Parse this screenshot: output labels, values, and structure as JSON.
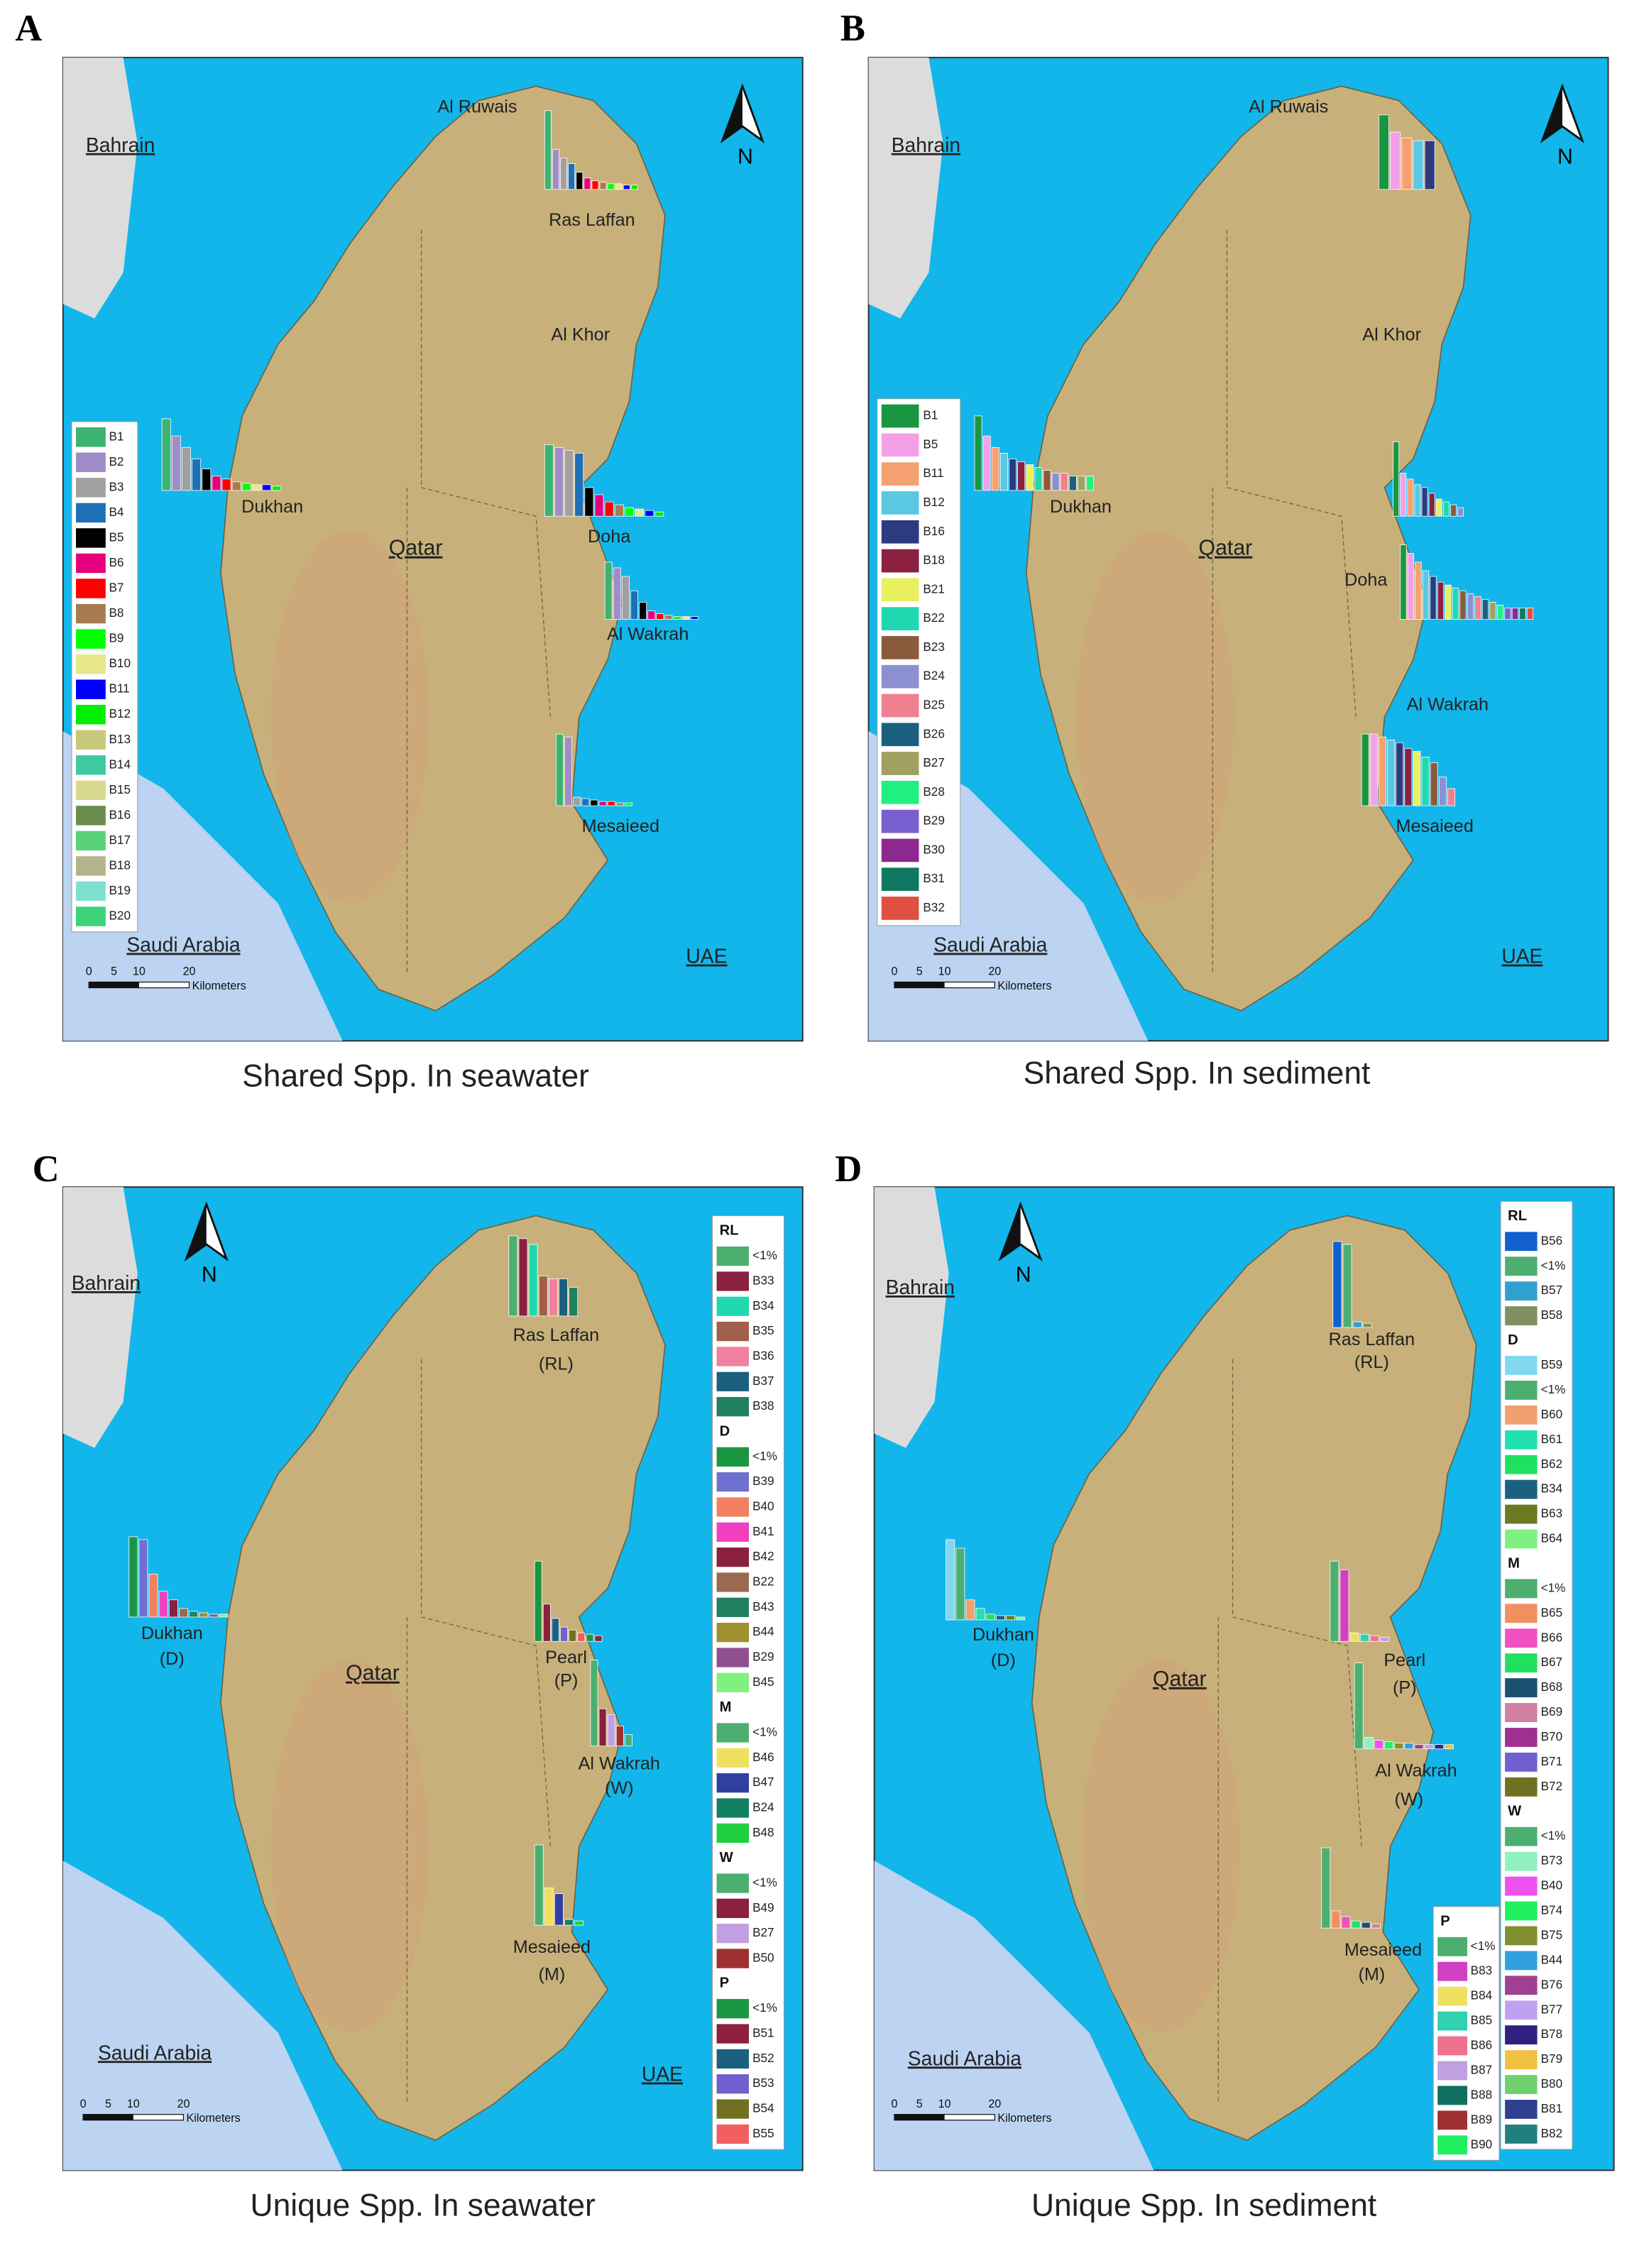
{
  "panels": [
    {
      "letter": "A",
      "caption": "Shared Spp. In seawater",
      "center_label": "Qatar",
      "north": "N",
      "countries": [
        "Bahrain",
        "Saudi Arabia",
        "UAE"
      ],
      "places": [
        "Al Ruwais",
        "Ras Laffan",
        "Al Khor",
        "Dukhan",
        "Doha",
        "Al Wakrah",
        "Mesaieed"
      ],
      "scale": {
        "ticks": [
          0,
          5,
          10,
          20
        ],
        "unit": "Kilometers"
      },
      "legend": {
        "items": [
          {
            "label": "B1",
            "color": "#3cb371"
          },
          {
            "label": "B2",
            "color": "#a08cc8"
          },
          {
            "label": "B3",
            "color": "#a0a0a0"
          },
          {
            "label": "B4",
            "color": "#1f6fb4"
          },
          {
            "label": "B5",
            "color": "#000000"
          },
          {
            "label": "B6",
            "color": "#e6007e"
          },
          {
            "label": "B7",
            "color": "#ff0000"
          },
          {
            "label": "B8",
            "color": "#a87b4f"
          },
          {
            "label": "B9",
            "color": "#00ff00"
          },
          {
            "label": "B10",
            "color": "#e6e68a"
          },
          {
            "label": "B11",
            "color": "#0000ff"
          },
          {
            "label": "B12",
            "color": "#00ee00"
          },
          {
            "label": "B13",
            "color": "#c8c878"
          },
          {
            "label": "B14",
            "color": "#40c8a0"
          },
          {
            "label": "B15",
            "color": "#d8d890"
          },
          {
            "label": "B16",
            "color": "#6b8e4e"
          },
          {
            "label": "B17",
            "color": "#5ad27a"
          },
          {
            "label": "B18",
            "color": "#b4b48c"
          },
          {
            "label": "B19",
            "color": "#80e0d0"
          },
          {
            "label": "B20",
            "color": "#3cd27a"
          }
        ]
      },
      "sites": [
        {
          "values": [
            55,
            28,
            22,
            18,
            12,
            8,
            6,
            5,
            4,
            4,
            3,
            3
          ]
        },
        {
          "values": [
            50,
            38,
            30,
            22,
            15,
            10,
            8,
            6,
            5,
            4,
            4,
            3
          ]
        },
        {
          "values": [
            50,
            48,
            46,
            44,
            20,
            15,
            10,
            8,
            6,
            5,
            4,
            3
          ]
        },
        {
          "values": [
            40,
            36,
            30,
            20,
            12,
            6,
            4,
            3,
            2,
            2,
            2
          ]
        },
        {
          "values": [
            50,
            48,
            6,
            5,
            4,
            3,
            3,
            2,
            2
          ]
        }
      ]
    },
    {
      "letter": "B",
      "caption": "Shared Spp. In sediment",
      "center_label": "Qatar",
      "north": "N",
      "countries": [
        "Bahrain",
        "Saudi Arabia",
        "UAE"
      ],
      "places": [
        "Al Ruwais",
        "Al Khor",
        "Dukhan",
        "Doha",
        "Al Wakrah",
        "Mesaieed"
      ],
      "scale": {
        "ticks": [
          0,
          5,
          10,
          20
        ],
        "unit": "Kilometers"
      },
      "legend": {
        "items": [
          {
            "label": "B1",
            "color": "#1a9641"
          },
          {
            "label": "B5",
            "color": "#f4a0e8"
          },
          {
            "label": "B11",
            "color": "#f4a070"
          },
          {
            "label": "B12",
            "color": "#5ac8e0"
          },
          {
            "label": "B16",
            "color": "#2e3a80"
          },
          {
            "label": "B18",
            "color": "#8b2040"
          },
          {
            "label": "B21",
            "color": "#e8f060"
          },
          {
            "label": "B22",
            "color": "#20d8b0"
          },
          {
            "label": "B23",
            "color": "#8b5a3c"
          },
          {
            "label": "B24",
            "color": "#8c90d0"
          },
          {
            "label": "B25",
            "color": "#f08090"
          },
          {
            "label": "B26",
            "color": "#1c6080"
          },
          {
            "label": "B27",
            "color": "#a0a060"
          },
          {
            "label": "B28",
            "color": "#20f080"
          },
          {
            "label": "B29",
            "color": "#7860d0"
          },
          {
            "label": "B30",
            "color": "#8c2890"
          },
          {
            "label": "B31",
            "color": "#107860"
          },
          {
            "label": "B32",
            "color": "#e05040"
          }
        ]
      },
      "sites": [
        {
          "values": [
            52,
            40,
            36,
            34,
            34
          ]
        },
        {
          "values": [
            52,
            38,
            30,
            26,
            22,
            20,
            18,
            16,
            14,
            12,
            12,
            10,
            10,
            10
          ]
        },
        {
          "values": [
            52,
            30,
            26,
            22,
            20,
            16,
            12,
            10,
            8,
            6
          ]
        },
        {
          "values": [
            52,
            46,
            40,
            34,
            30,
            26,
            24,
            22,
            20,
            18,
            16,
            14,
            12,
            10,
            8,
            8,
            8,
            8
          ]
        },
        {
          "values": [
            50,
            50,
            48,
            46,
            44,
            40,
            38,
            34,
            30,
            20,
            12
          ]
        }
      ]
    },
    {
      "letter": "C",
      "caption": "Unique Spp. In seawater",
      "center_label": "Qatar",
      "north": "N",
      "countries": [
        "Bahrain",
        "Saudi Arabia",
        "UAE"
      ],
      "places": [
        "Ras Laffan",
        "(RL)",
        "Dukhan",
        "(D)",
        "Pearl",
        "(P)",
        "Al Wakrah",
        "(W)",
        "Mesaieed",
        "(M)"
      ],
      "scale": {
        "ticks": [
          0,
          5,
          10,
          20
        ],
        "unit": "Kilometers"
      },
      "legend": {
        "groups": [
          {
            "title": "RL",
            "items": [
              {
                "label": "<1%",
                "color": "#4caf70"
              },
              {
                "label": "B33",
                "color": "#8b2040"
              },
              {
                "label": "B34",
                "color": "#20d8b0"
              },
              {
                "label": "B35",
                "color": "#a0604c"
              },
              {
                "label": "B36",
                "color": "#f080a0"
              },
              {
                "label": "B37",
                "color": "#1c6080"
              },
              {
                "label": "B38",
                "color": "#208060"
              }
            ]
          },
          {
            "title": "D",
            "items": [
              {
                "label": "<1%",
                "color": "#1a9641"
              },
              {
                "label": "B39",
                "color": "#7070d0"
              },
              {
                "label": "B40",
                "color": "#f08060"
              },
              {
                "label": "B41",
                "color": "#f040c0"
              },
              {
                "label": "B42",
                "color": "#8b2040"
              },
              {
                "label": "B22",
                "color": "#9a6a50"
              },
              {
                "label": "B43",
                "color": "#208060"
              },
              {
                "label": "B44",
                "color": "#a09030"
              },
              {
                "label": "B29",
                "color": "#905090"
              },
              {
                "label": "B45",
                "color": "#80f080"
              }
            ]
          },
          {
            "title": "M",
            "items": [
              {
                "label": "<1%",
                "color": "#4caf70"
              },
              {
                "label": "B46",
                "color": "#f0e060"
              },
              {
                "label": "B47",
                "color": "#3040a0"
              },
              {
                "label": "B24",
                "color": "#108060"
              },
              {
                "label": "B48",
                "color": "#20d040"
              }
            ]
          },
          {
            "title": "W",
            "items": [
              {
                "label": "<1%",
                "color": "#4caf70"
              },
              {
                "label": "B49",
                "color": "#8b2040"
              },
              {
                "label": "B27",
                "color": "#c0a0e0"
              },
              {
                "label": "B50",
                "color": "#a03030"
              }
            ]
          },
          {
            "title": "P",
            "items": [
              {
                "label": "<1%",
                "color": "#1a9641"
              },
              {
                "label": "B51",
                "color": "#8b2040"
              },
              {
                "label": "B52",
                "color": "#1c6080"
              },
              {
                "label": "B53",
                "color": "#7060d0"
              },
              {
                "label": "B54",
                "color": "#707020"
              },
              {
                "label": "B55",
                "color": "#f06060"
              }
            ]
          }
        ]
      },
      "sites": [
        {
          "values": [
            56,
            54,
            50,
            28,
            26,
            26,
            20
          ]
        },
        {
          "values": [
            56,
            54,
            30,
            18,
            12,
            6,
            4,
            3,
            2,
            2
          ]
        },
        {
          "values": [
            56,
            26,
            22,
            4,
            3
          ]
        },
        {
          "values": [
            60,
            26,
            22,
            14,
            8
          ]
        },
        {
          "values": [
            56,
            26,
            16,
            10,
            8,
            6,
            5,
            4
          ]
        }
      ]
    },
    {
      "letter": "D",
      "caption": "Unique Spp. In sediment",
      "center_label": "Qatar",
      "north": "N",
      "countries": [
        "Bahrain",
        "Saudi Arabia"
      ],
      "places": [
        "Ras Laffan",
        "(RL)",
        "Dukhan",
        "(D)",
        "Pearl",
        "(P)",
        "Al Wakrah",
        "(W)",
        "Mesaieed",
        "(M)"
      ],
      "scale": {
        "ticks": [
          0,
          5,
          10,
          20
        ],
        "unit": "Kilometers"
      },
      "legend": {
        "groups": [
          {
            "title": "RL",
            "items": [
              {
                "label": "B56",
                "color": "#1060d0"
              },
              {
                "label": "<1%",
                "color": "#4caf70"
              },
              {
                "label": "B57",
                "color": "#30a0d0"
              },
              {
                "label": "B58",
                "color": "#809060"
              }
            ]
          },
          {
            "title": "D",
            "items": [
              {
                "label": "B59",
                "color": "#80d8f0"
              },
              {
                "label": "<1%",
                "color": "#4caf70"
              },
              {
                "label": "B60",
                "color": "#f0a070"
              },
              {
                "label": "B61",
                "color": "#20e0b0"
              },
              {
                "label": "B62",
                "color": "#20e060"
              },
              {
                "label": "B34",
                "color": "#1c6080"
              },
              {
                "label": "B63",
                "color": "#6b7a20"
              },
              {
                "label": "B64",
                "color": "#80f080"
              }
            ]
          },
          {
            "title": "M",
            "items": [
              {
                "label": "<1%",
                "color": "#4caf70"
              },
              {
                "label": "B65",
                "color": "#f09060"
              },
              {
                "label": "B66",
                "color": "#f050c0"
              },
              {
                "label": "B67",
                "color": "#20e060"
              },
              {
                "label": "B68",
                "color": "#1c5070"
              },
              {
                "label": "B69",
                "color": "#d080a0"
              },
              {
                "label": "B70",
                "color": "#a03090"
              },
              {
                "label": "B71",
                "color": "#7060d0"
              },
              {
                "label": "B72",
                "color": "#707020"
              }
            ]
          },
          {
            "title": "W",
            "items": [
              {
                "label": "<1%",
                "color": "#4caf70"
              },
              {
                "label": "B73",
                "color": "#90f0c0"
              },
              {
                "label": "B40",
                "color": "#f050f0"
              },
              {
                "label": "B74",
                "color": "#20f060"
              },
              {
                "label": "B75",
                "color": "#809030"
              },
              {
                "label": "B44",
                "color": "#30a0e0"
              },
              {
                "label": "B76",
                "color": "#a04090"
              },
              {
                "label": "B77",
                "color": "#c0a0f0"
              },
              {
                "label": "B78",
                "color": "#302080"
              },
              {
                "label": "B79",
                "color": "#f0c040"
              },
              {
                "label": "B80",
                "color": "#70d070"
              },
              {
                "label": "B81",
                "color": "#304090"
              },
              {
                "label": "B82",
                "color": "#208080"
              }
            ]
          },
          {
            "title": "P",
            "items": [
              {
                "label": "<1%",
                "color": "#4caf70"
              },
              {
                "label": "B83",
                "color": "#d040c0"
              },
              {
                "label": "B84",
                "color": "#f0e060"
              },
              {
                "label": "B85",
                "color": "#30d0b0"
              },
              {
                "label": "B86",
                "color": "#f07090"
              },
              {
                "label": "B87",
                "color": "#c0a0e0"
              },
              {
                "label": "B88",
                "color": "#107060"
              },
              {
                "label": "B89",
                "color": "#a03030"
              },
              {
                "label": "B90",
                "color": "#20f060"
              }
            ]
          }
        ]
      },
      "sites": [
        {
          "values": [
            60,
            58,
            4,
            3
          ]
        },
        {
          "values": [
            56,
            50,
            14,
            8,
            4,
            3,
            3,
            2
          ]
        },
        {
          "values": [
            56,
            12,
            8,
            5,
            4,
            3
          ]
        },
        {
          "values": [
            60,
            8,
            6,
            5,
            4,
            4,
            3,
            3,
            3,
            3
          ]
        },
        {
          "values": [
            56,
            50,
            6,
            5,
            4,
            3
          ]
        }
      ]
    }
  ]
}
